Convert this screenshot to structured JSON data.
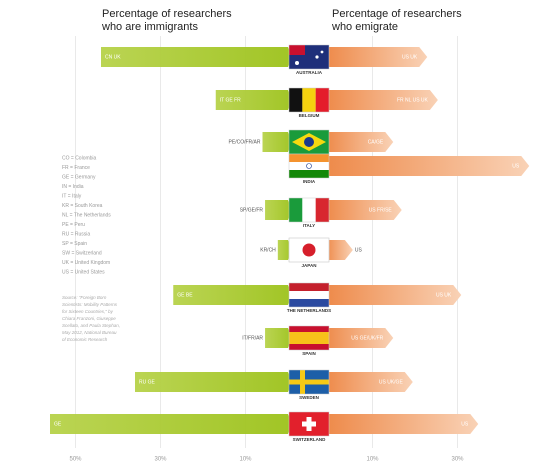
{
  "chart_data": {
    "type": "diverging-bar",
    "categories": [
      "AUSTRALIA",
      "BELGIUM",
      "BRAZIL",
      "INDIA",
      "ITALY",
      "JAPAN",
      "THE NETHERLANDS",
      "SPAIN",
      "SWEDEN",
      "SWITZERLAND"
    ],
    "series": [
      {
        "name": [
          "Percentage of researchers",
          "who are immigrants"
        ],
        "color": "#a4c639",
        "values": [
          44,
          17,
          6,
          0,
          5.4,
          2.4,
          27,
          5.4,
          36,
          56
        ],
        "segment_labels": [
          "CN UK",
          "IT GE FR",
          "PE/CO/FR/AR",
          "",
          "SP/GE/FR",
          "KR/CH",
          "GE BE",
          "IT/FR/AR",
          "RU GE",
          "GE"
        ]
      },
      {
        "name": [
          "Percentage of researchers",
          "who emigrate"
        ],
        "color": "#f0935a",
        "values": [
          21,
          23.5,
          13,
          45,
          15,
          3.5,
          29,
          13,
          17.6,
          33
        ],
        "segment_labels": [
          "US UK",
          "FR NL US UK",
          "CA/GE",
          "US",
          "US FR/SE",
          "US",
          "US UK",
          "US GE/UK/FR",
          "US UK/GE",
          "US"
        ]
      }
    ],
    "xlim_left": [
      0,
      55
    ],
    "xticks_left": [
      {
        "value": 50,
        "label": "50%"
      },
      {
        "value": 30,
        "label": "30%"
      },
      {
        "value": 10,
        "label": "10%"
      }
    ],
    "xlim_right": [
      0,
      45
    ],
    "xticks_right": [
      {
        "value": 10,
        "label": "10%"
      },
      {
        "value": 30,
        "label": "30%"
      }
    ],
    "grid": true,
    "key": [
      "CO = Colombia",
      "FR = France",
      "GE = Germany",
      "IN = India",
      "IT = Italy",
      "KR = South Korea",
      "NL = The Netherlands",
      "PE = Peru",
      "RU = Russia",
      "SP = Spain",
      "SW = Switzerland",
      "UK = United Kingdom",
      "US = United States"
    ],
    "source": [
      "Source: \"Foreign Born",
      "Scientists: Mobility Patterns",
      "for Sixteen Countries,\" by",
      "Chiara Franzoni, Giuseppe",
      "Scellato, and Paula Stephan,",
      "May 2012, National Bureau",
      "of Economic Research"
    ]
  }
}
